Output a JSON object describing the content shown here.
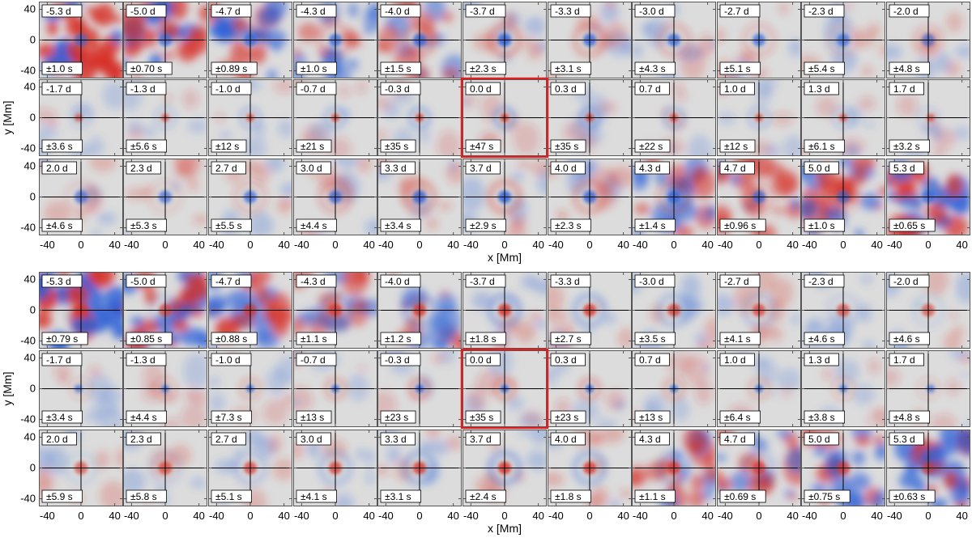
{
  "figure": {
    "xlabel": "x [Mm]",
    "ylabel": "y [Mm]",
    "x_ticks": [
      "-40",
      "0",
      "40"
    ],
    "y_ticks": [
      "40",
      "0",
      "-40"
    ],
    "axis_range": [
      -50,
      50
    ],
    "highlight_time": "0.0 d",
    "highlight_color": "#e02020",
    "colors": {
      "positive": "#d73027",
      "negative": "#2b60d8",
      "zero": "#dcdcdc"
    }
  },
  "groups": [
    {
      "rows": [
        {
          "times": [
            "-5.3 d",
            "-5.0 d",
            "-4.7 d",
            "-4.3 d",
            "-4.0 d",
            "-3.7 d",
            "-3.3 d",
            "-3.0 d",
            "-2.7 d",
            "-2.3 d",
            "-2.0 d"
          ],
          "errors": [
            "±1.0 s",
            "±0.70 s",
            "±0.89 s",
            "±1.0 s",
            "±1.5 s",
            "±2.3 s",
            "±3.1 s",
            "±4.3 s",
            "±5.1 s",
            "±5.4 s",
            "±4.8 s"
          ]
        },
        {
          "times": [
            "-1.7 d",
            "-1.3 d",
            "-1.0 d",
            "-0.7 d",
            "-0.3 d",
            "0.0 d",
            "0.3 d",
            "0.7 d",
            "1.0 d",
            "1.3 d",
            "1.7 d"
          ],
          "errors": [
            "±3.6 s",
            "±5.6 s",
            "±12 s",
            "±21 s",
            "±35 s",
            "±47 s",
            "±35 s",
            "±22 s",
            "±12 s",
            "±6.1 s",
            "±3.2 s"
          ]
        },
        {
          "times": [
            "2.0 d",
            "2.3 d",
            "2.7 d",
            "3.0 d",
            "3.3 d",
            "3.7 d",
            "4.0 d",
            "4.3 d",
            "4.7 d",
            "5.0 d",
            "5.3 d"
          ],
          "errors": [
            "±4.6 s",
            "±5.3 s",
            "±5.5 s",
            "±4.4 s",
            "±3.4 s",
            "±2.9 s",
            "±2.3 s",
            "±1.4 s",
            "±0.96 s",
            "±1.0 s",
            "±0.65 s"
          ]
        }
      ]
    },
    {
      "rows": [
        {
          "times": [
            "-5.3 d",
            "-5.0 d",
            "-4.7 d",
            "-4.3 d",
            "-4.0 d",
            "-3.7 d",
            "-3.3 d",
            "-3.0 d",
            "-2.7 d",
            "-2.3 d",
            "-2.0 d"
          ],
          "errors": [
            "±0.79 s",
            "±0.85 s",
            "±0.88 s",
            "±1.1 s",
            "±1.2 s",
            "±1.8 s",
            "±2.7 s",
            "±3.5 s",
            "±4.1 s",
            "±4.6 s",
            "±4.6 s"
          ]
        },
        {
          "times": [
            "-1.7 d",
            "-1.3 d",
            "-1.0 d",
            "-0.7 d",
            "-0.3 d",
            "0.0 d",
            "0.3 d",
            "0.7 d",
            "1.0 d",
            "1.3 d",
            "1.7 d"
          ],
          "errors": [
            "±3.4 s",
            "±4.4 s",
            "±7.3 s",
            "±13 s",
            "±23 s",
            "±35 s",
            "±23 s",
            "±13 s",
            "±6.4 s",
            "±3.8 s",
            "±4.8 s"
          ]
        },
        {
          "times": [
            "2.0 d",
            "2.3 d",
            "2.7 d",
            "3.0 d",
            "3.3 d",
            "3.7 d",
            "4.0 d",
            "4.3 d",
            "4.7 d",
            "5.0 d",
            "5.3 d"
          ],
          "errors": [
            "±5.9 s",
            "±5.8 s",
            "±5.1 s",
            "±4.1 s",
            "±3.1 s",
            "±2.4 s",
            "±1.8 s",
            "±1.1 s",
            "±0.69 s",
            "±0.75 s",
            "±0.63 s"
          ]
        }
      ]
    }
  ]
}
